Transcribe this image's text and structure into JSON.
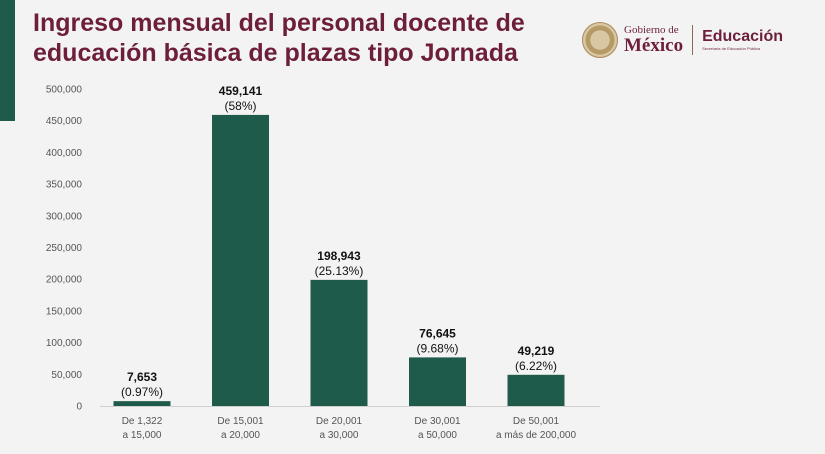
{
  "header": {
    "title": "Ingreso mensual del personal docente de educación básica de plazas tipo Jornada"
  },
  "branding": {
    "gobierno_line1": "Gobierno de",
    "gobierno_line2": "México",
    "education": "Educación",
    "education_sub": "Secretaría de Educación Pública"
  },
  "colors": {
    "bar": "#1f5b4a",
    "title": "#6d1e3b"
  },
  "chart_data": {
    "type": "bar",
    "title": "Ingreso mensual del personal docente de educación básica de plazas tipo Jornada",
    "xlabel": "",
    "ylabel": "",
    "ylim": [
      0,
      500000
    ],
    "yticks": [
      0,
      50000,
      100000,
      150000,
      200000,
      250000,
      300000,
      350000,
      400000,
      450000,
      500000
    ],
    "ytick_labels": [
      "0",
      "50,000",
      "100,000",
      "150,000",
      "200,000",
      "250,000",
      "300,000",
      "350,000",
      "400,000",
      "450,000",
      "500,000"
    ],
    "categories": [
      [
        "De 1,322",
        "a 15,000"
      ],
      [
        "De 15,001",
        "a 20,000"
      ],
      [
        "De 20,001",
        "a 30,000"
      ],
      [
        "De 30,001",
        "a 50,000"
      ],
      [
        "De 50,001",
        "a más de 200,000"
      ]
    ],
    "values": [
      7653,
      459141,
      198943,
      76645,
      49219
    ],
    "value_labels": [
      "7,653",
      "459,141",
      "198,943",
      "76,645",
      "49,219"
    ],
    "percent_labels": [
      "(0.97%)",
      "(58%)",
      "(25.13%)",
      "(9.68%)",
      "(6.22%)"
    ],
    "grid": false,
    "legend": "none"
  }
}
